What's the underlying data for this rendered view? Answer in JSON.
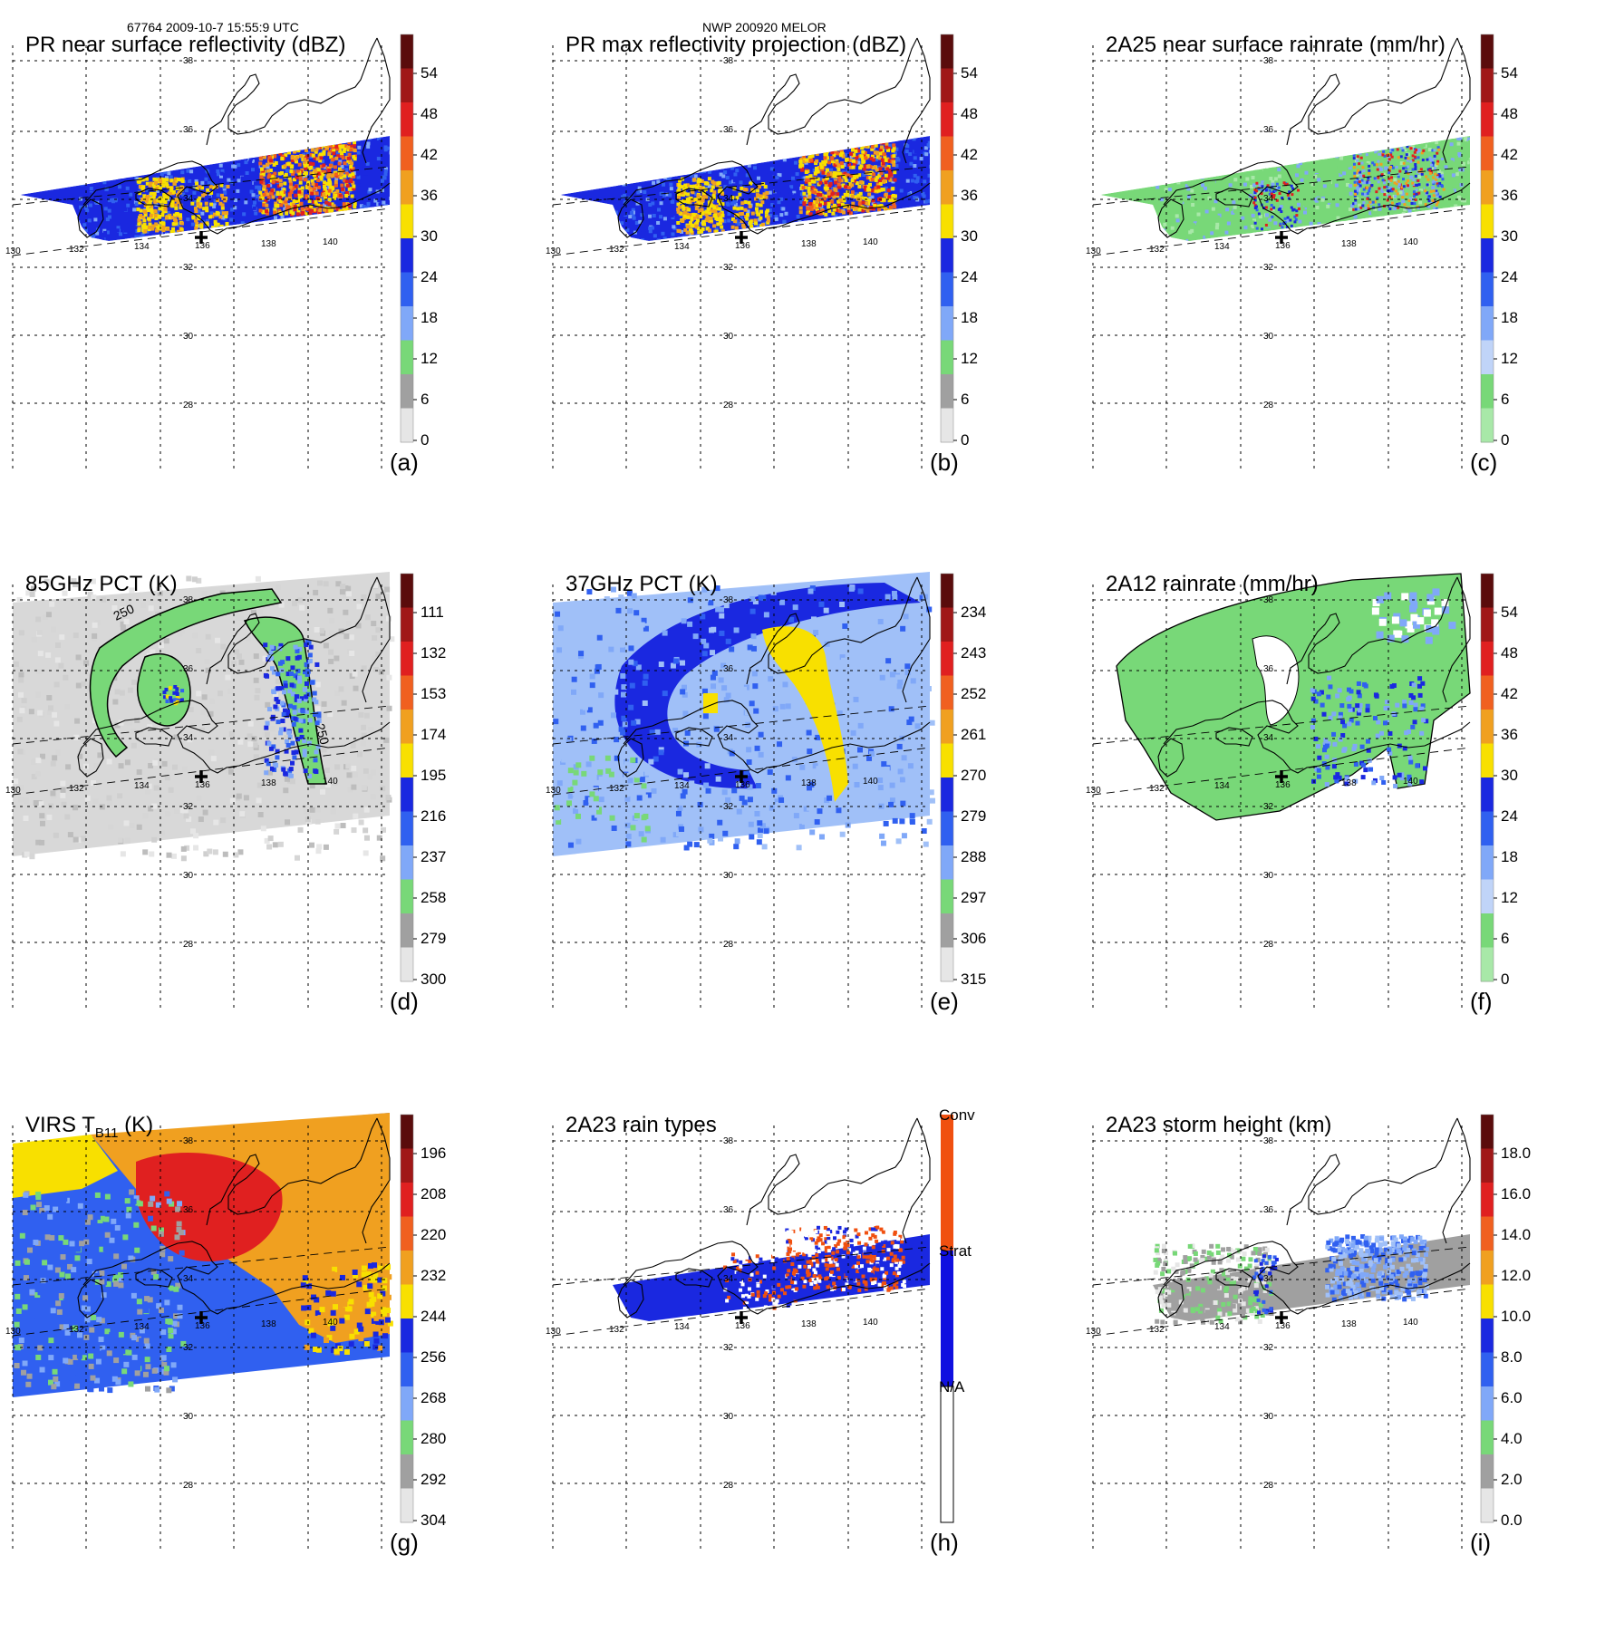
{
  "header": {
    "left": "67764 2009-10-7 15:55:9 UTC",
    "center": "NWP 200920 MELOR"
  },
  "lat_ticks": [
    "38",
    "36",
    "34",
    "32",
    "30",
    "28"
  ],
  "lon_ticks": [
    "130",
    "132",
    "134",
    "136",
    "138",
    "140"
  ],
  "panels": [
    {
      "id": "a",
      "label": "(a)",
      "title": "PR near surface reflectivity (dBZ)",
      "type": "pr",
      "colorbar": [
        "54",
        "48",
        "42",
        "36",
        "30",
        "24",
        "18",
        "12",
        "6",
        "0"
      ]
    },
    {
      "id": "b",
      "label": "(b)",
      "title": "PR max reflectivity projection (dBZ)",
      "type": "pr",
      "colorbar": [
        "54",
        "48",
        "42",
        "36",
        "30",
        "24",
        "18",
        "12",
        "6",
        "0"
      ]
    },
    {
      "id": "c",
      "label": "(c)",
      "title": "2A25 near surface rainrate (mm/hr)",
      "type": "rain",
      "colorbar": [
        "54",
        "48",
        "42",
        "36",
        "30",
        "24",
        "18",
        "12",
        "6",
        "0"
      ]
    },
    {
      "id": "d",
      "label": "(d)",
      "title": "85GHz PCT (K)",
      "type": "pct85",
      "colorbar": [
        "111",
        "132",
        "153",
        "174",
        "195",
        "216",
        "237",
        "258",
        "279",
        "300"
      ],
      "contour_label": "250"
    },
    {
      "id": "e",
      "label": "(e)",
      "title": "37GHz PCT (K)",
      "type": "pct37",
      "colorbar": [
        "234",
        "243",
        "252",
        "261",
        "270",
        "279",
        "288",
        "297",
        "306",
        "315"
      ]
    },
    {
      "id": "f",
      "label": "(f)",
      "title": "2A12 rainrate (mm/hr)",
      "type": "tmi_rain",
      "colorbar": [
        "54",
        "48",
        "42",
        "36",
        "30",
        "24",
        "18",
        "12",
        "6",
        "0"
      ]
    },
    {
      "id": "g",
      "label": "(g)",
      "title": "VIRS T",
      "title_sub": "B11",
      "title_suffix": " (K)",
      "type": "virs",
      "colorbar": [
        "196",
        "208",
        "220",
        "232",
        "244",
        "256",
        "268",
        "280",
        "292",
        "304"
      ]
    },
    {
      "id": "h",
      "label": "(h)",
      "title": "2A23 rain types",
      "type": "raintype",
      "colorbar": [
        "Conv",
        "Strat",
        "N/A"
      ]
    },
    {
      "id": "i",
      "label": "(i)",
      "title": "2A23 storm height (km)",
      "type": "height",
      "colorbar": [
        "18.0",
        "16.0",
        "14.0",
        "12.0",
        "10.0",
        "8.0",
        "6.0",
        "4.0",
        "2.0",
        "0.0"
      ]
    }
  ],
  "colors": {
    "dark_red": "#7a1010",
    "red": "#e02020",
    "orange": "#f08020",
    "yellow": "#f8e000",
    "blue": "#1020d8",
    "mid_blue": "#4080f0",
    "light_blue": "#a0c0f8",
    "green": "#78d878",
    "gray": "#a0a0a0",
    "light_gray": "#e0e0e0"
  }
}
